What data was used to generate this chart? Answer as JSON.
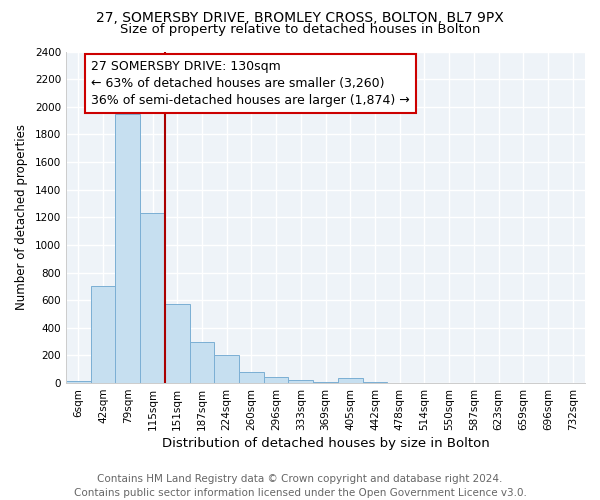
{
  "title": "27, SOMERSBY DRIVE, BROMLEY CROSS, BOLTON, BL7 9PX",
  "subtitle": "Size of property relative to detached houses in Bolton",
  "xlabel": "Distribution of detached houses by size in Bolton",
  "ylabel": "Number of detached properties",
  "bar_color": "#c6dff0",
  "bar_edge_color": "#7bafd4",
  "categories": [
    "6sqm",
    "42sqm",
    "79sqm",
    "115sqm",
    "151sqm",
    "187sqm",
    "224sqm",
    "260sqm",
    "296sqm",
    "333sqm",
    "369sqm",
    "405sqm",
    "442sqm",
    "478sqm",
    "514sqm",
    "550sqm",
    "587sqm",
    "623sqm",
    "659sqm",
    "696sqm",
    "732sqm"
  ],
  "values": [
    15,
    700,
    1950,
    1230,
    575,
    300,
    200,
    80,
    45,
    25,
    10,
    35,
    5,
    3,
    2,
    2,
    1,
    1,
    1,
    1,
    1
  ],
  "vline_x": 3.5,
  "vline_color": "#aa0000",
  "annotation_text": "27 SOMERSBY DRIVE: 130sqm\n← 63% of detached houses are smaller (3,260)\n36% of semi-detached houses are larger (1,874) →",
  "annotation_box_color": "white",
  "annotation_box_edgecolor": "#cc0000",
  "ylim": [
    0,
    2400
  ],
  "yticks": [
    0,
    200,
    400,
    600,
    800,
    1000,
    1200,
    1400,
    1600,
    1800,
    2000,
    2200,
    2400
  ],
  "footer_line1": "Contains HM Land Registry data © Crown copyright and database right 2024.",
  "footer_line2": "Contains public sector information licensed under the Open Government Licence v3.0.",
  "title_fontsize": 10,
  "subtitle_fontsize": 9.5,
  "xlabel_fontsize": 9.5,
  "ylabel_fontsize": 8.5,
  "tick_fontsize": 7.5,
  "annotation_fontsize": 9,
  "footer_fontsize": 7.5,
  "bg_color": "#eef3f8"
}
